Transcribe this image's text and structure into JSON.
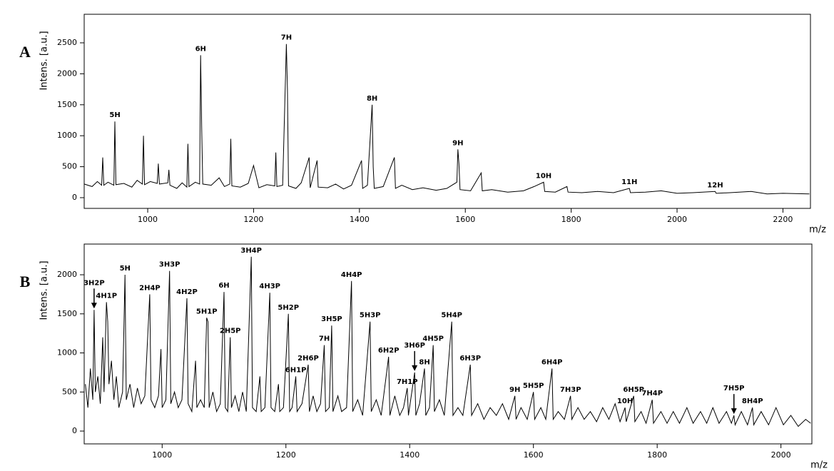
{
  "chart_data": [
    {
      "type": "line",
      "panel": "A",
      "ylabel": "Intens. [a.u.]",
      "xlabel": "m/z",
      "color": "#000000",
      "xlim": [
        880,
        2252
      ],
      "ylim": [
        -173,
        2961
      ],
      "xticks": [
        1000,
        1200,
        1400,
        1600,
        1800,
        2000,
        2200
      ],
      "yticks": [
        0,
        500,
        1000,
        1500,
        2000,
        2500
      ],
      "x": [
        880,
        895,
        905,
        913,
        915,
        917,
        925,
        936,
        938,
        940,
        955,
        970,
        980,
        990,
        992,
        994,
        1005,
        1018,
        1020,
        1022,
        1038,
        1040,
        1042,
        1055,
        1065,
        1074,
        1076,
        1078,
        1090,
        1098,
        1100,
        1102,
        1104,
        1120,
        1135,
        1145,
        1155,
        1157,
        1159,
        1175,
        1190,
        1200,
        1210,
        1225,
        1240,
        1242,
        1244,
        1255,
        1262,
        1264,
        1266,
        1280,
        1290,
        1305,
        1307,
        1320,
        1322,
        1340,
        1355,
        1370,
        1385,
        1404,
        1406,
        1415,
        1424,
        1426,
        1428,
        1445,
        1466,
        1468,
        1480,
        1500,
        1520,
        1545,
        1565,
        1584,
        1586,
        1588,
        1590,
        1610,
        1630,
        1632,
        1650,
        1680,
        1710,
        1730,
        1748,
        1750,
        1770,
        1792,
        1794,
        1820,
        1850,
        1880,
        1910,
        1912,
        1940,
        1970,
        2000,
        2030,
        2072,
        2074,
        2100,
        2140,
        2170,
        2200,
        2250
      ],
      "values": [
        220,
        180,
        260,
        200,
        650,
        200,
        250,
        200,
        1230,
        210,
        230,
        170,
        280,
        220,
        1000,
        210,
        260,
        230,
        550,
        220,
        240,
        450,
        200,
        150,
        240,
        170,
        870,
        180,
        250,
        220,
        2300,
        1130,
        220,
        200,
        320,
        180,
        220,
        950,
        190,
        170,
        230,
        520,
        160,
        210,
        190,
        730,
        180,
        200,
        2480,
        1750,
        190,
        150,
        240,
        650,
        160,
        600,
        170,
        160,
        220,
        140,
        200,
        600,
        150,
        200,
        1500,
        500,
        150,
        180,
        650,
        150,
        200,
        130,
        160,
        120,
        150,
        250,
        780,
        550,
        130,
        110,
        400,
        110,
        130,
        90,
        110,
        180,
        250,
        100,
        90,
        180,
        90,
        80,
        100,
        80,
        150,
        80,
        90,
        110,
        70,
        80,
        100,
        70,
        80,
        100,
        60,
        70,
        60
      ],
      "annotations": [
        {
          "text": "5H",
          "x": 938,
          "y": 1230
        },
        {
          "text": "6H",
          "x": 1100,
          "y": 2300
        },
        {
          "text": "7H",
          "x": 1262,
          "y": 2480
        },
        {
          "text": "8H",
          "x": 1424,
          "y": 1500
        },
        {
          "text": "9H",
          "x": 1586,
          "y": 780
        },
        {
          "text": "10H",
          "x": 1748,
          "y": 250
        },
        {
          "text": "11H",
          "x": 1910,
          "y": 150
        },
        {
          "text": "12H",
          "x": 2072,
          "y": 100
        }
      ]
    },
    {
      "type": "line",
      "panel": "B",
      "ylabel": "Intens. [a.u.]",
      "xlabel": "m/z",
      "color": "#000000",
      "xlim": [
        874,
        2050
      ],
      "ylim": [
        -164,
        2393
      ],
      "xticks": [
        1000,
        1200,
        1400,
        1600,
        1800,
        2000
      ],
      "yticks": [
        0,
        500,
        1000,
        1500,
        2000
      ],
      "x": [
        876,
        880,
        884,
        888,
        890,
        892,
        896,
        900,
        904,
        906,
        910,
        912,
        914,
        918,
        922,
        926,
        930,
        936,
        940,
        942,
        948,
        954,
        960,
        966,
        972,
        980,
        982,
        988,
        994,
        998,
        1000,
        1006,
        1012,
        1014,
        1020,
        1026,
        1032,
        1040,
        1042,
        1048,
        1054,
        1056,
        1062,
        1068,
        1072,
        1074,
        1076,
        1082,
        1088,
        1094,
        1100,
        1102,
        1106,
        1110,
        1112,
        1118,
        1124,
        1130,
        1136,
        1144,
        1146,
        1152,
        1158,
        1160,
        1166,
        1174,
        1176,
        1182,
        1188,
        1190,
        1196,
        1204,
        1206,
        1210,
        1216,
        1218,
        1226,
        1236,
        1238,
        1244,
        1250,
        1256,
        1262,
        1264,
        1270,
        1274,
        1276,
        1284,
        1290,
        1298,
        1306,
        1308,
        1316,
        1324,
        1336,
        1338,
        1346,
        1354,
        1366,
        1368,
        1376,
        1384,
        1390,
        1396,
        1398,
        1408,
        1410,
        1416,
        1424,
        1426,
        1432,
        1438,
        1440,
        1448,
        1456,
        1468,
        1470,
        1478,
        1486,
        1498,
        1500,
        1510,
        1520,
        1530,
        1540,
        1550,
        1560,
        1570,
        1572,
        1580,
        1590,
        1600,
        1602,
        1612,
        1620,
        1630,
        1632,
        1640,
        1650,
        1660,
        1662,
        1672,
        1682,
        1692,
        1702,
        1712,
        1722,
        1732,
        1740,
        1748,
        1750,
        1762,
        1764,
        1774,
        1782,
        1792,
        1794,
        1806,
        1816,
        1826,
        1836,
        1848,
        1858,
        1870,
        1880,
        1890,
        1900,
        1912,
        1920,
        1924,
        1926,
        1936,
        1946,
        1954,
        1956,
        1968,
        1980,
        1992,
        2004,
        2016,
        2028,
        2040,
        2048
      ],
      "values": [
        600,
        300,
        800,
        400,
        1550,
        500,
        700,
        350,
        1200,
        500,
        1650,
        1400,
        600,
        900,
        400,
        700,
        300,
        500,
        2000,
        400,
        600,
        300,
        550,
        350,
        450,
        1750,
        400,
        300,
        450,
        1050,
        300,
        400,
        2050,
        350,
        500,
        300,
        400,
        1700,
        350,
        250,
        900,
        300,
        400,
        300,
        1450,
        1400,
        300,
        500,
        250,
        350,
        1780,
        300,
        250,
        1200,
        300,
        450,
        250,
        500,
        250,
        2230,
        300,
        250,
        700,
        250,
        300,
        1770,
        300,
        250,
        600,
        250,
        300,
        1500,
        250,
        300,
        700,
        250,
        350,
        850,
        250,
        450,
        250,
        350,
        1100,
        250,
        300,
        1350,
        250,
        450,
        250,
        300,
        1920,
        250,
        400,
        200,
        1400,
        250,
        400,
        200,
        950,
        200,
        450,
        200,
        300,
        550,
        200,
        750,
        200,
        350,
        800,
        200,
        300,
        1100,
        250,
        400,
        200,
        1400,
        200,
        300,
        200,
        850,
        200,
        350,
        150,
        300,
        200,
        350,
        150,
        450,
        150,
        300,
        150,
        500,
        150,
        300,
        150,
        800,
        150,
        250,
        150,
        450,
        150,
        300,
        150,
        250,
        120,
        300,
        150,
        350,
        120,
        300,
        120,
        450,
        120,
        250,
        100,
        400,
        100,
        250,
        100,
        250,
        100,
        300,
        100,
        250,
        100,
        300,
        100,
        250,
        100,
        200,
        80,
        250,
        80,
        300,
        80,
        250,
        80,
        300,
        80,
        200,
        60,
        150,
        100
      ],
      "annotations": [
        {
          "text": "3H2P",
          "x": 890,
          "y": 1550,
          "arrow": true
        },
        {
          "text": "4H1P",
          "x": 910,
          "y": 1650
        },
        {
          "text": "5H",
          "x": 940,
          "y": 2000
        },
        {
          "text": "2H4P",
          "x": 980,
          "y": 1750
        },
        {
          "text": "3H3P",
          "x": 1012,
          "y": 2050
        },
        {
          "text": "4H2P",
          "x": 1040,
          "y": 1700
        },
        {
          "text": "5H1P",
          "x": 1072,
          "y": 1450
        },
        {
          "text": "6H",
          "x": 1100,
          "y": 1780
        },
        {
          "text": "2H5P",
          "x": 1110,
          "y": 1200
        },
        {
          "text": "3H4P",
          "x": 1144,
          "y": 2230
        },
        {
          "text": "4H3P",
          "x": 1174,
          "y": 1770
        },
        {
          "text": "5H2P",
          "x": 1204,
          "y": 1500
        },
        {
          "text": "6H1P",
          "x": 1216,
          "y": 700
        },
        {
          "text": "2H6P",
          "x": 1236,
          "y": 850
        },
        {
          "text": "7H",
          "x": 1262,
          "y": 1100
        },
        {
          "text": "3H5P",
          "x": 1274,
          "y": 1350
        },
        {
          "text": "4H4P",
          "x": 1306,
          "y": 1920
        },
        {
          "text": "5H3P",
          "x": 1336,
          "y": 1400
        },
        {
          "text": "6H2P",
          "x": 1366,
          "y": 950
        },
        {
          "text": "7H1P",
          "x": 1396,
          "y": 550
        },
        {
          "text": "3H6P",
          "x": 1408,
          "y": 750,
          "arrow": true
        },
        {
          "text": "8H",
          "x": 1424,
          "y": 800
        },
        {
          "text": "4H5P",
          "x": 1438,
          "y": 1100
        },
        {
          "text": "5H4P",
          "x": 1468,
          "y": 1400
        },
        {
          "text": "6H3P",
          "x": 1498,
          "y": 850
        },
        {
          "text": "9H",
          "x": 1570,
          "y": 450
        },
        {
          "text": "5H5P",
          "x": 1600,
          "y": 500
        },
        {
          "text": "6H4P",
          "x": 1630,
          "y": 800
        },
        {
          "text": "7H3P",
          "x": 1660,
          "y": 450
        },
        {
          "text": "10H",
          "x": 1748,
          "y": 300
        },
        {
          "text": "6H5P",
          "x": 1762,
          "y": 450
        },
        {
          "text": "7H4P",
          "x": 1792,
          "y": 400
        },
        {
          "text": "7H5P",
          "x": 1924,
          "y": 200,
          "arrow": true
        },
        {
          "text": "8H4P",
          "x": 1954,
          "y": 300
        }
      ]
    }
  ]
}
